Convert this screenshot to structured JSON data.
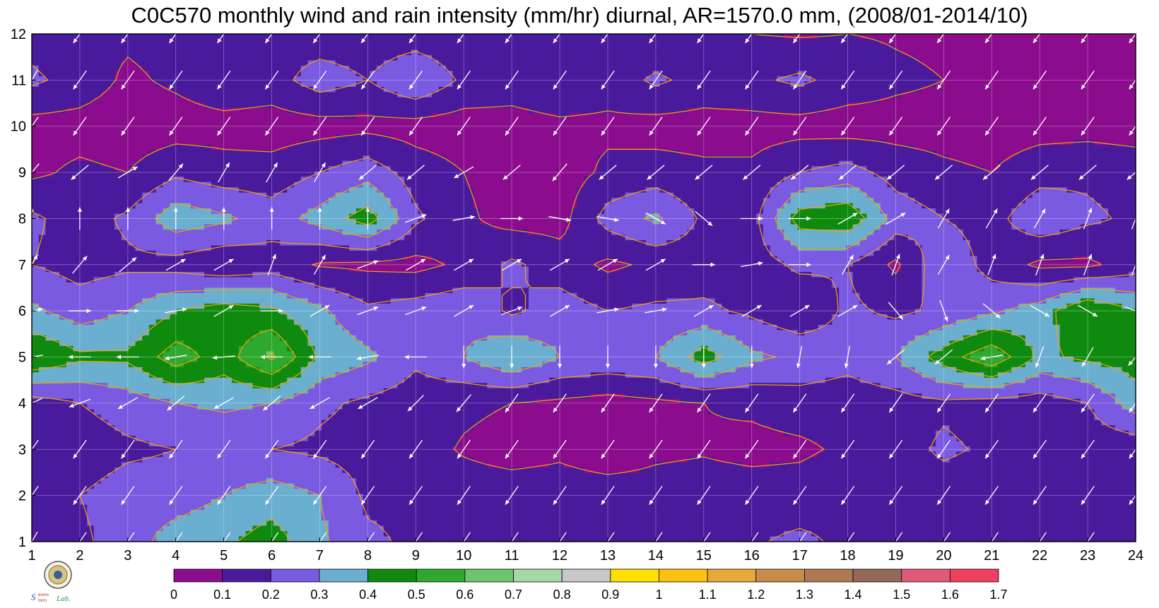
{
  "chart_data": {
    "type": "heatmap",
    "title": "C0C570 monthly wind and rain intensity (mm/hr) diurnal, AR=1570.0 mm, (2008/01-2014/10)",
    "xlabel": "",
    "ylabel": "",
    "x_range": [
      1,
      24
    ],
    "y_range": [
      1,
      12
    ],
    "x_ticks": [
      "1",
      "2",
      "3",
      "4",
      "5",
      "6",
      "7",
      "8",
      "9",
      "10",
      "11",
      "12",
      "13",
      "14",
      "15",
      "16",
      "17",
      "18",
      "19",
      "20",
      "21",
      "22",
      "23",
      "24"
    ],
    "y_ticks": [
      "1",
      "2",
      "3",
      "4",
      "5",
      "6",
      "7",
      "8",
      "9",
      "10",
      "11",
      "12"
    ],
    "grid": true,
    "contour_line_color": "#f0a500",
    "contour_levels": [
      0,
      0.1,
      0.2,
      0.3,
      0.4,
      0.5,
      0.6,
      0.7,
      0.8,
      0.9,
      1,
      1.1,
      1.2,
      1.3,
      1.4,
      1.5,
      1.6,
      1.7
    ],
    "colorbar_labels": [
      "0",
      "0.1",
      "0.2",
      "0.3",
      "0.4",
      "0.5",
      "0.6",
      "0.7",
      "0.8",
      "0.9",
      "1",
      "1.1",
      "1.2",
      "1.3",
      "1.4",
      "1.5",
      "1.6",
      "1.7"
    ],
    "colorbar_colors": [
      "#8b0d8e",
      "#4a1a9c",
      "#7a5ae0",
      "#6aaed0",
      "#0f8a0f",
      "#2ea82e",
      "#6cc46c",
      "#a6d8a6",
      "#c8c8c8",
      "#ffe000",
      "#ffc010",
      "#e8a838",
      "#c88c4a",
      "#b07850",
      "#946858",
      "#e05a78",
      "#f04060"
    ],
    "rain_intensity": [
      [
        0.15,
        0.18,
        0.25,
        0.35,
        0.38,
        0.45,
        0.32,
        0.22,
        0.18,
        0.16,
        0.17,
        0.2,
        0.19,
        0.18,
        0.18,
        0.19,
        0.22,
        0.18,
        0.14,
        0.12,
        0.14,
        0.16,
        0.18,
        0.2
      ],
      [
        0.18,
        0.2,
        0.25,
        0.25,
        0.3,
        0.35,
        0.3,
        0.18,
        0.18,
        0.15,
        0.15,
        0.15,
        0.15,
        0.14,
        0.15,
        0.15,
        0.15,
        0.18,
        0.18,
        0.14,
        0.14,
        0.18,
        0.18,
        0.18
      ],
      [
        0.12,
        0.14,
        0.18,
        0.2,
        0.22,
        0.2,
        0.18,
        0.16,
        0.14,
        0.09,
        0.06,
        0.08,
        0.04,
        0.08,
        0.09,
        0.07,
        0.08,
        0.12,
        0.15,
        0.22,
        0.18,
        0.17,
        0.14,
        0.13
      ],
      [
        0.15,
        0.2,
        0.25,
        0.3,
        0.32,
        0.3,
        0.22,
        0.18,
        0.15,
        0.12,
        0.1,
        0.08,
        0.06,
        0.08,
        0.1,
        0.12,
        0.15,
        0.14,
        0.16,
        0.18,
        0.16,
        0.15,
        0.2,
        0.35
      ],
      [
        0.5,
        0.42,
        0.42,
        0.55,
        0.45,
        0.62,
        0.38,
        0.32,
        0.22,
        0.3,
        0.4,
        0.3,
        0.28,
        0.3,
        0.45,
        0.32,
        0.28,
        0.24,
        0.3,
        0.45,
        0.58,
        0.38,
        0.42,
        0.45
      ],
      [
        0.32,
        0.25,
        0.3,
        0.4,
        0.45,
        0.42,
        0.32,
        0.22,
        0.25,
        0.28,
        0.18,
        0.25,
        0.2,
        0.22,
        0.22,
        0.18,
        0.12,
        0.22,
        0.18,
        0.22,
        0.28,
        0.35,
        0.5,
        0.4
      ],
      [
        0.2,
        0.16,
        0.18,
        0.16,
        0.12,
        0.15,
        0.09,
        0.08,
        0.07,
        0.12,
        0.22,
        0.15,
        0.08,
        0.12,
        0.15,
        0.15,
        0.22,
        0.2,
        0.08,
        0.28,
        0.16,
        0.08,
        0.08,
        0.15
      ],
      [
        0.22,
        0.15,
        0.22,
        0.36,
        0.32,
        0.25,
        0.34,
        0.45,
        0.22,
        0.12,
        0.06,
        0.06,
        0.24,
        0.32,
        0.18,
        0.16,
        0.45,
        0.48,
        0.26,
        0.2,
        0.16,
        0.28,
        0.22,
        0.18
      ],
      [
        0.08,
        0.12,
        0.1,
        0.18,
        0.14,
        0.14,
        0.2,
        0.26,
        0.15,
        0.1,
        0.05,
        0.05,
        0.12,
        0.14,
        0.12,
        0.12,
        0.2,
        0.24,
        0.16,
        0.12,
        0.1,
        0.16,
        0.18,
        0.16
      ],
      [
        0.06,
        0.06,
        0.04,
        0.05,
        0.06,
        0.05,
        0.06,
        0.07,
        0.06,
        0.05,
        0.06,
        0.08,
        0.08,
        0.06,
        0.06,
        0.06,
        0.06,
        0.05,
        0.06,
        0.06,
        0.05,
        0.06,
        0.06,
        0.05
      ],
      [
        0.22,
        0.16,
        0.08,
        0.12,
        0.18,
        0.16,
        0.25,
        0.2,
        0.3,
        0.18,
        0.15,
        0.18,
        0.14,
        0.22,
        0.16,
        0.18,
        0.22,
        0.16,
        0.12,
        0.1,
        0.08,
        0.06,
        0.08,
        0.1
      ],
      [
        0.16,
        0.12,
        0.12,
        0.14,
        0.15,
        0.16,
        0.14,
        0.14,
        0.14,
        0.12,
        0.12,
        0.1,
        0.1,
        0.1,
        0.11,
        0.1,
        0.09,
        0.1,
        0.09,
        0.08,
        0.07,
        0.06,
        0.08,
        0.1
      ]
    ],
    "wind_direction_deg": [
      [
        210,
        215,
        215,
        215,
        215,
        215,
        215,
        215,
        215,
        215,
        215,
        215,
        215,
        215,
        215,
        215,
        215,
        215,
        215,
        215,
        215,
        215,
        215,
        215
      ],
      [
        215,
        215,
        215,
        215,
        215,
        215,
        215,
        215,
        215,
        215,
        215,
        215,
        215,
        215,
        215,
        215,
        215,
        215,
        215,
        215,
        215,
        215,
        215,
        215
      ],
      [
        215,
        215,
        215,
        215,
        215,
        215,
        215,
        215,
        215,
        215,
        215,
        215,
        215,
        215,
        215,
        215,
        215,
        215,
        215,
        215,
        215,
        215,
        215,
        215
      ],
      [
        245,
        250,
        240,
        230,
        240,
        230,
        240,
        240,
        225,
        220,
        215,
        215,
        215,
        215,
        215,
        215,
        215,
        215,
        215,
        215,
        215,
        215,
        215,
        215
      ],
      [
        260,
        270,
        270,
        260,
        265,
        270,
        270,
        260,
        270,
        180,
        180,
        180,
        180,
        180,
        180,
        180,
        190,
        190,
        230,
        230,
        260,
        200,
        210,
        220
      ],
      [
        80,
        90,
        90,
        80,
        60,
        90,
        60,
        70,
        70,
        60,
        70,
        60,
        80,
        80,
        60,
        60,
        60,
        60,
        140,
        160,
        130,
        120,
        120,
        110
      ],
      [
        30,
        40,
        50,
        60,
        60,
        20,
        30,
        70,
        60,
        60,
        60,
        60,
        60,
        60,
        90,
        80,
        90,
        30,
        20,
        30,
        20,
        20,
        20,
        20
      ],
      [
        0,
        0,
        0,
        0,
        0,
        0,
        0,
        0,
        70,
        80,
        90,
        100,
        100,
        120,
        130,
        90,
        90,
        60,
        60,
        30,
        30,
        30,
        20,
        20
      ],
      [
        220,
        230,
        60,
        40,
        30,
        30,
        30,
        230,
        230,
        240,
        230,
        220,
        230,
        230,
        230,
        230,
        230,
        230,
        230,
        230,
        230,
        230,
        230,
        230
      ],
      [
        215,
        215,
        215,
        215,
        215,
        215,
        215,
        215,
        215,
        215,
        215,
        215,
        215,
        215,
        215,
        215,
        215,
        215,
        215,
        215,
        215,
        215,
        215,
        215
      ],
      [
        210,
        215,
        215,
        215,
        215,
        215,
        215,
        215,
        215,
        215,
        215,
        215,
        215,
        215,
        215,
        215,
        215,
        215,
        215,
        215,
        215,
        215,
        215,
        215
      ],
      [
        215,
        215,
        215,
        215,
        215,
        215,
        215,
        215,
        215,
        215,
        215,
        215,
        215,
        215,
        215,
        215,
        215,
        215,
        215,
        215,
        215,
        215,
        215,
        215
      ]
    ]
  },
  "logo": {
    "lab_text": "Lab.",
    "brand_text": "Severe Storm"
  }
}
